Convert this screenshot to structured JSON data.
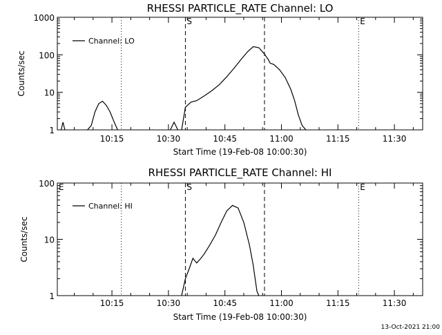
{
  "footer": {
    "timestamp": "13-Oct-2021 21:00"
  },
  "chart_data": [
    {
      "type": "line",
      "title": "RHESSI PARTICLE_RATE Channel: LO",
      "xlabel": "Start Time (19-Feb-08 10:00:30)",
      "ylabel": "Counts/sec",
      "yscale": "log",
      "ylim": [
        1,
        1000
      ],
      "xlim_minutes": [
        0.5,
        97.5
      ],
      "xticks": [
        {
          "min": 15,
          "label": "10:15"
        },
        {
          "min": 30,
          "label": "10:30"
        },
        {
          "min": 45,
          "label": "10:45"
        },
        {
          "min": 60,
          "label": "11:00"
        },
        {
          "min": 75,
          "label": "11:15"
        },
        {
          "min": 90,
          "label": "11:30"
        }
      ],
      "yticks": [
        {
          "value": 1,
          "label": "1"
        },
        {
          "value": 10,
          "label": "10"
        },
        {
          "value": 100,
          "label": "100"
        },
        {
          "value": 1000,
          "label": "1000"
        }
      ],
      "legend": "Channel: LO",
      "markers": [
        {
          "min": 17.5,
          "style": "dotted",
          "label": ""
        },
        {
          "min": 34.5,
          "style": "dashed",
          "label": "S"
        },
        {
          "min": 55.5,
          "style": "dashed",
          "label": ""
        },
        {
          "min": 80.5,
          "style": "dotted",
          "label": "E"
        },
        {
          "min": 97.5,
          "style": "dotted",
          "label": ""
        }
      ],
      "series": [
        {
          "name": "Channel: LO",
          "segments": [
            [
              [
                1.5,
                0.5
              ],
              [
                2,
                1.6
              ],
              [
                2.5,
                0.5
              ]
            ],
            [
              [
                8.5,
                0.5
              ],
              [
                9.5,
                1.3
              ],
              [
                10.5,
                3
              ],
              [
                11.5,
                5
              ],
              [
                12.5,
                5.8
              ],
              [
                13.5,
                4.5
              ],
              [
                14.5,
                3
              ],
              [
                15.5,
                1.7
              ],
              [
                16.5,
                0.5
              ]
            ],
            [
              [
                30.5,
                0.5
              ],
              [
                31.5,
                1.6
              ],
              [
                32.5,
                0.5
              ]
            ],
            [
              [
                33.5,
                0.5
              ],
              [
                34.5,
                4
              ],
              [
                36,
                5.5
              ],
              [
                37.5,
                6
              ],
              [
                39.5,
                8
              ],
              [
                41.5,
                11
              ],
              [
                43.5,
                16
              ],
              [
                45.5,
                26
              ],
              [
                47.5,
                45
              ],
              [
                49.5,
                80
              ],
              [
                51,
                120
              ],
              [
                52.5,
                165
              ],
              [
                54,
                155
              ],
              [
                55.5,
                105
              ],
              [
                56.5,
                75
              ],
              [
                57,
                60
              ],
              [
                58,
                55
              ],
              [
                59.5,
                40
              ],
              [
                61,
                25
              ],
              [
                62.5,
                12
              ],
              [
                63.5,
                6
              ],
              [
                64.5,
                2.5
              ],
              [
                65.5,
                1.3
              ],
              [
                66.5,
                0.5
              ]
            ]
          ]
        }
      ]
    },
    {
      "type": "line",
      "title": "RHESSI PARTICLE_RATE Channel: HI",
      "xlabel": "Start Time (19-Feb-08 10:00:30)",
      "ylabel": "Counts/sec",
      "yscale": "log",
      "ylim": [
        1,
        100
      ],
      "xlim_minutes": [
        0.5,
        97.5
      ],
      "xticks": [
        {
          "min": 15,
          "label": "10:15"
        },
        {
          "min": 30,
          "label": "10:30"
        },
        {
          "min": 45,
          "label": "10:45"
        },
        {
          "min": 60,
          "label": "11:00"
        },
        {
          "min": 75,
          "label": "11:15"
        },
        {
          "min": 90,
          "label": "11:30"
        }
      ],
      "yticks": [
        {
          "value": 1,
          "label": "1"
        },
        {
          "value": 10,
          "label": "10"
        },
        {
          "value": 100,
          "label": "100"
        }
      ],
      "legend": "Channel: HI",
      "markers": [
        {
          "min": 0.5,
          "style": "none",
          "label": "E"
        },
        {
          "min": 17.5,
          "style": "dotted",
          "label": ""
        },
        {
          "min": 34.5,
          "style": "dashed",
          "label": "S"
        },
        {
          "min": 55.5,
          "style": "dashed",
          "label": ""
        },
        {
          "min": 80.5,
          "style": "dotted",
          "label": "E"
        },
        {
          "min": 97.5,
          "style": "dotted",
          "label": ""
        }
      ],
      "series": [
        {
          "name": "Channel: HI",
          "segments": [
            [
              [
                33.5,
                0.5
              ],
              [
                34.5,
                2
              ],
              [
                35.5,
                3
              ],
              [
                36.5,
                4.6
              ],
              [
                37.5,
                3.8
              ],
              [
                38.5,
                4.5
              ],
              [
                39.5,
                5.5
              ],
              [
                41,
                8
              ],
              [
                42.5,
                12
              ],
              [
                44,
                20
              ],
              [
                45.5,
                32
              ],
              [
                47,
                40
              ],
              [
                48.5,
                36
              ],
              [
                50,
                20
              ],
              [
                51.5,
                8
              ],
              [
                52.5,
                3.5
              ],
              [
                53.5,
                1.2
              ],
              [
                54,
                0.5
              ]
            ]
          ]
        }
      ]
    }
  ]
}
